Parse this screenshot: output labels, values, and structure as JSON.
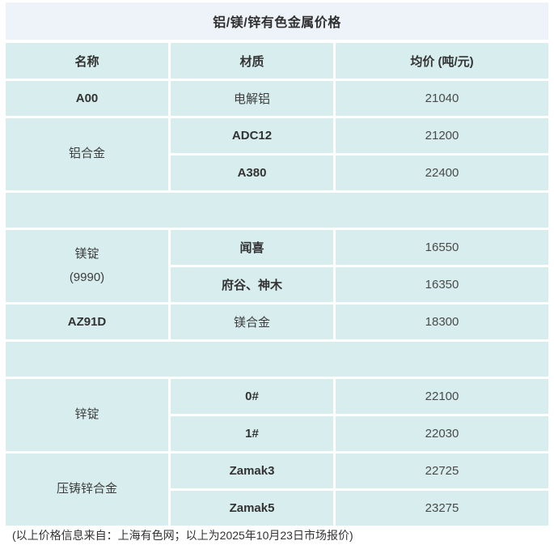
{
  "title": "铝/镁/锌有色金属价格",
  "colors": {
    "cell_bg": "#d8edee",
    "title_bg": "#eef3f9",
    "gutter": "#ffffff",
    "text": "#333333"
  },
  "table": {
    "header": {
      "name": "名称",
      "material": "材质",
      "price": "均价 (吨/元)"
    },
    "groups": [
      {
        "material": "电解铝",
        "rows": [
          {
            "name": "A00",
            "price": "21040"
          }
        ]
      },
      {
        "material": "铝合金",
        "rows": [
          {
            "name": "ADC12",
            "price": "21200"
          },
          {
            "name": "A380",
            "price": "22400"
          }
        ]
      },
      {
        "material": "镁锭",
        "material_note": "(9990)",
        "rows": [
          {
            "name": "闻喜",
            "price": "16550"
          },
          {
            "name": "府谷、神木",
            "price": "16350"
          }
        ]
      },
      {
        "material": "镁合金",
        "rows": [
          {
            "name": "AZ91D",
            "price": "18300"
          }
        ]
      },
      {
        "material": "锌锭",
        "rows": [
          {
            "name": "0#",
            "price": "22100"
          },
          {
            "name": "1#",
            "price": "22030"
          }
        ]
      },
      {
        "material": "压铸锌合金",
        "rows": [
          {
            "name": "Zamak3",
            "price": "22725"
          },
          {
            "name": "Zamak5",
            "price": "23275"
          }
        ]
      }
    ]
  },
  "footer": {
    "note": "(以上价格信息来自：上海有色网；以上为2025年10月23日市场报价)"
  }
}
